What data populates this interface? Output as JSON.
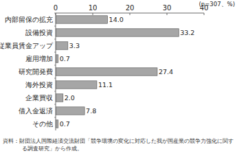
{
  "chart_data": {
    "type": "bar",
    "orientation": "horizontal",
    "subtitle": "(n=307、%)",
    "annotations": [
      "資料：財団法人国際経済交流財団「競争環境の変化に対応した我が国産業の競争力強化に関する調査研究」から作成。"
    ],
    "categories": [
      "内部留保の拡充",
      "設備投資",
      "従業員賃金アップ",
      "雇用増加",
      "研究開発費",
      "海外投資",
      "企業買収",
      "借入金返済",
      "その他"
    ],
    "values": [
      14.0,
      33.2,
      3.3,
      0.7,
      27.4,
      11.1,
      2.0,
      7.8,
      0.7
    ],
    "value_labels": [
      "14.0",
      "33.2",
      "3.3",
      "0.7",
      "27.4",
      "11.1",
      "2.0",
      "7.8",
      "0.7"
    ],
    "color": "#a6a6a6",
    "xlim": [
      0,
      40
    ],
    "xticks": [
      0,
      10,
      20,
      30,
      40
    ],
    "grid": false,
    "data_labels": true
  }
}
